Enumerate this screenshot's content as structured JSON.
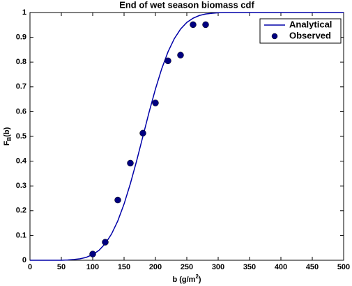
{
  "chart_data": {
    "type": "line",
    "title": "End of wet season biomass cdf",
    "xlabel": {
      "text": "b (g/m",
      "sup": "2",
      "end": ")"
    },
    "ylabel": {
      "text": "F",
      "sub": "B",
      "end": "(b)"
    },
    "xlim": [
      0,
      500
    ],
    "xticks": [
      0,
      50,
      100,
      150,
      200,
      250,
      300,
      350,
      400,
      450,
      500
    ],
    "ylim": [
      0,
      1
    ],
    "yticks": [
      0,
      0.1,
      0.2,
      0.3,
      0.4,
      0.5,
      0.6,
      0.7,
      0.8,
      0.9,
      1
    ],
    "legend": "upper right",
    "series": [
      {
        "name": "Analytical",
        "type": "line",
        "color": "#0000a8",
        "x": [
          0,
          50,
          60,
          70,
          80,
          90,
          100,
          110,
          120,
          130,
          140,
          150,
          160,
          170,
          180,
          190,
          200,
          210,
          220,
          230,
          240,
          250,
          260,
          270,
          280,
          290,
          300,
          310,
          350,
          400,
          450,
          500
        ],
        "values": [
          0,
          0,
          0.001,
          0.003,
          0.006,
          0.012,
          0.023,
          0.04,
          0.067,
          0.106,
          0.159,
          0.227,
          0.309,
          0.401,
          0.5,
          0.599,
          0.691,
          0.773,
          0.841,
          0.894,
          0.933,
          0.96,
          0.977,
          0.988,
          0.994,
          0.997,
          0.999,
          1,
          1,
          1,
          1,
          1
        ]
      },
      {
        "name": "Observed",
        "type": "scatter",
        "color": "#000080",
        "x": [
          100,
          120,
          140,
          160,
          180,
          200,
          220,
          240,
          260,
          280
        ],
        "values": [
          0.025,
          0.073,
          0.243,
          0.392,
          0.513,
          0.635,
          0.805,
          0.828,
          0.951,
          0.951
        ]
      }
    ]
  }
}
